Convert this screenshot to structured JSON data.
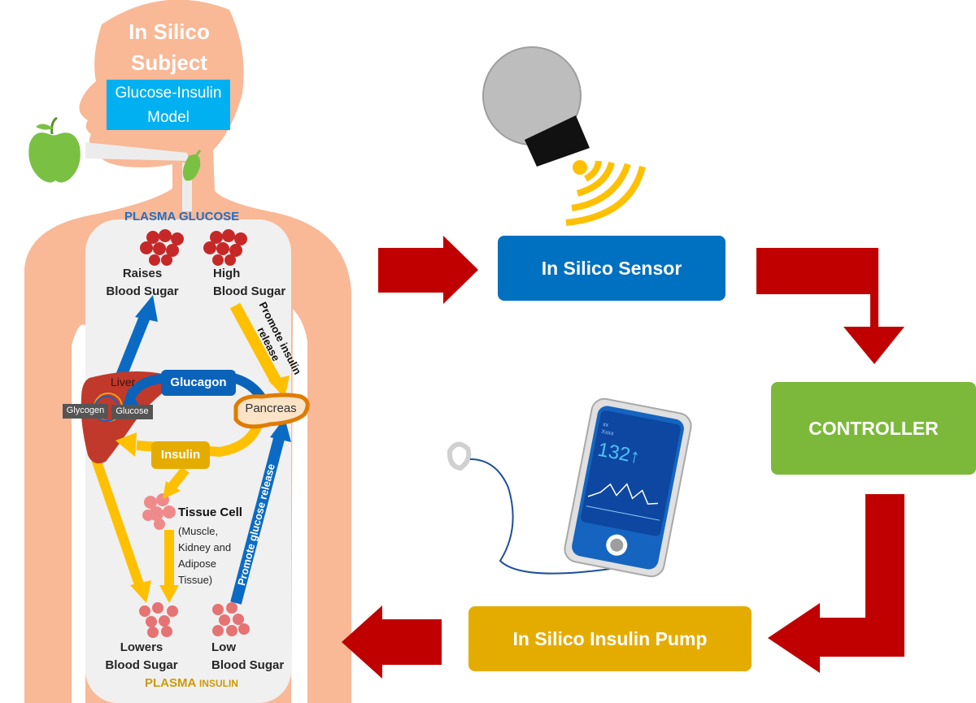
{
  "subject": {
    "title_line1": "In Silico",
    "title_line2": "Subject",
    "model_line1": "Glucose-Insulin",
    "model_line2": "Model"
  },
  "body_labels": {
    "plasma_glucose": "PLASMA GLUCOSE",
    "raises_line1": "Raises",
    "raises_line2": "Blood Sugar",
    "high_line1": "High",
    "high_line2": "Blood Sugar",
    "promote_insulin_line1": "Promote insulin",
    "promote_insulin_line2": "release",
    "liver": "Liver",
    "glycogen": "Glycogen",
    "glucose": "Glucose",
    "glucagon": "Glucagon",
    "pancreas": "Pancreas",
    "insulin": "Insulin",
    "tissue_cell": "Tissue Cell",
    "tissue_line1": "(Muscle,",
    "tissue_line2": "Kidney and",
    "tissue_line3": "Adipose",
    "tissue_line4": "Tissue)",
    "promote_glucose": "Promote glucose release",
    "lowers_line1": "Lowers",
    "lowers_line2": "Blood Sugar",
    "low_line1": "Low",
    "low_line2": "Blood Sugar",
    "plasma_insulin_a": "PLASMA ",
    "plasma_insulin_b": "INSULIN"
  },
  "loop": {
    "sensor_label": "In Silico Sensor",
    "controller_label": "CONTROLLER",
    "pump_label": "In Silico Insulin Pump"
  },
  "pump_screen": {
    "small_1": "xx",
    "small_2": "Xxxx",
    "reading": "132↑"
  },
  "colors": {
    "skin": "#f9b896",
    "organ_area": "#f0f0f0",
    "sensor_blue": "#0070c0",
    "controller_green": "#7cb93b",
    "pump_gold": "#e5ac00",
    "arrow_red": "#c00000",
    "arrow_yellow": "#ffc000",
    "arrow_blue": "#0b6bc4",
    "glucagon_blue": "#0a63b8",
    "liver_red": "#c0392b",
    "model_cyan": "#00b0f0",
    "apple_green": "#7ac143"
  },
  "icons": [
    "apple-icon",
    "food-bite-icon",
    "cgm-sensor-icon",
    "insulin-pump-phone-icon",
    "blood-cells-icon",
    "tissue-cell-icon"
  ]
}
